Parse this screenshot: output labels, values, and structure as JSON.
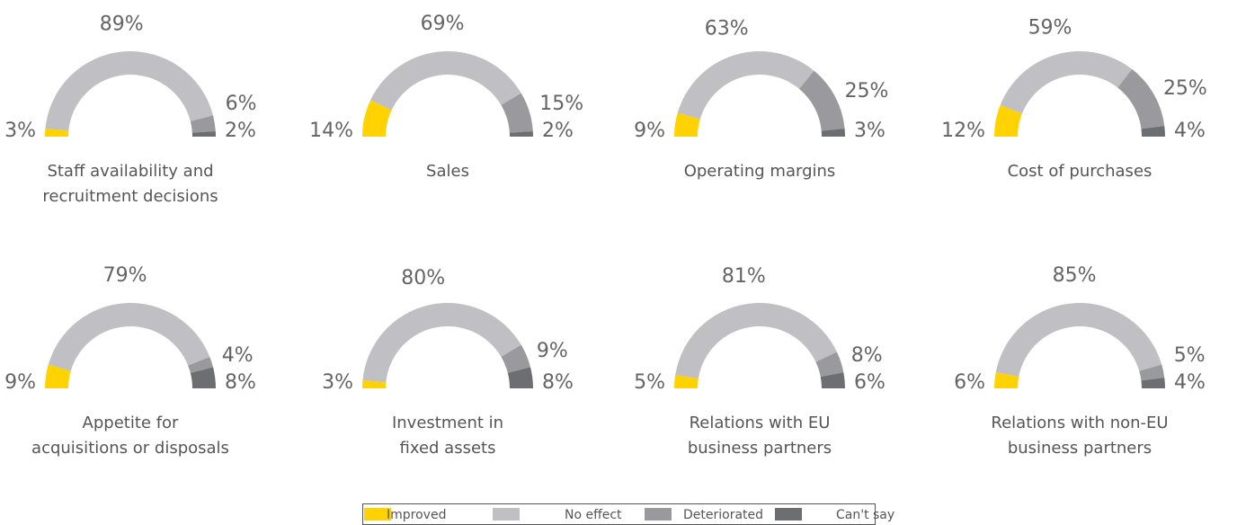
{
  "legend": {
    "categories": [
      "Improved",
      "No effect",
      "Deteriorated",
      "Can't say"
    ],
    "colors": [
      "#ffd200",
      "#c0c0c4",
      "#9a9a9e",
      "#6d6e71"
    ]
  },
  "chart_data": [
    {
      "type": "pie",
      "half": true,
      "title": [
        "Staff availability and",
        "recruitment decisions"
      ],
      "values": [
        3,
        89,
        6,
        2
      ],
      "value_labels": [
        "3%",
        "89%",
        "6%",
        "2%"
      ]
    },
    {
      "type": "pie",
      "half": true,
      "title": [
        "Sales"
      ],
      "values": [
        14,
        69,
        15,
        2
      ],
      "value_labels": [
        "14%",
        "69%",
        "15%",
        "2%"
      ]
    },
    {
      "type": "pie",
      "half": true,
      "title": [
        "Operating margins"
      ],
      "values": [
        9,
        63,
        25,
        3
      ],
      "value_labels": [
        "9%",
        "63%",
        "25%",
        "3%"
      ]
    },
    {
      "type": "pie",
      "half": true,
      "title": [
        "Cost of purchases"
      ],
      "values": [
        12,
        59,
        25,
        4
      ],
      "value_labels": [
        "12%",
        "59%",
        "25%",
        "4%"
      ]
    },
    {
      "type": "pie",
      "half": true,
      "title": [
        "Appetite for",
        "acquisitions or disposals"
      ],
      "values": [
        9,
        79,
        4,
        8
      ],
      "value_labels": [
        "9%",
        "79%",
        "4%",
        "8%"
      ]
    },
    {
      "type": "pie",
      "half": true,
      "title": [
        "Investment in",
        "fixed assets"
      ],
      "values": [
        3,
        80,
        9,
        8
      ],
      "value_labels": [
        "3%",
        "80%",
        "9%",
        "8%"
      ]
    },
    {
      "type": "pie",
      "half": true,
      "title": [
        "Relations with EU",
        "business partners"
      ],
      "values": [
        5,
        81,
        8,
        6
      ],
      "value_labels": [
        "5%",
        "81%",
        "8%",
        "6%"
      ]
    },
    {
      "type": "pie",
      "half": true,
      "title": [
        "Relations with non-EU",
        "business partners"
      ],
      "values": [
        6,
        85,
        5,
        4
      ],
      "value_labels": [
        "6%",
        "85%",
        "5%",
        "4%"
      ]
    }
  ]
}
